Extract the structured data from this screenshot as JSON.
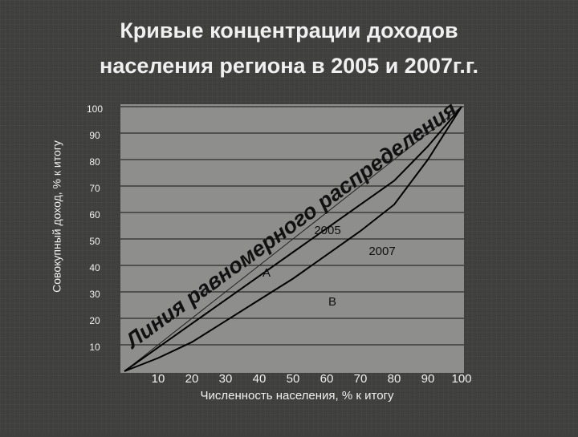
{
  "chart_data": {
    "type": "line",
    "title": [
      "Кривые концентрации доходов",
      "населения региона в 2005 и 2007г.г."
    ],
    "x_label": "Численность населения, % к итогу",
    "y_label": "Совокупный доход, % к итогу",
    "x": [
      0,
      10,
      20,
      30,
      40,
      50,
      60,
      70,
      80,
      90,
      100
    ],
    "series": [
      {
        "name": "2005",
        "color": "#000000",
        "values": [
          0,
          9,
          18,
          27,
          36,
          45,
          54,
          63,
          72,
          85,
          100
        ]
      },
      {
        "name": "2007",
        "color": "#000000",
        "values": [
          0,
          5,
          11,
          19,
          27,
          35,
          44,
          53,
          63,
          80,
          100
        ]
      }
    ],
    "xlim": [
      0,
      100
    ],
    "ylim": [
      0,
      100
    ],
    "xticks": [
      10,
      20,
      30,
      40,
      50,
      60,
      70,
      80,
      90,
      100
    ],
    "yticks": [
      10,
      20,
      30,
      40,
      50,
      60,
      70,
      80,
      90,
      100
    ],
    "grid": true,
    "annotations": [
      "Линия равномерного распределения",
      "A",
      "B"
    ]
  }
}
